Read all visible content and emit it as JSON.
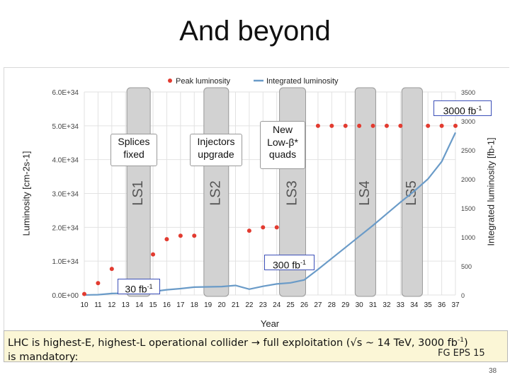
{
  "slide": {
    "title": "And beyond",
    "summary_line1": "LHC is highest-E, highest-L operational collider → full exploitation (√s ~ 14 TeV, 3000 fb",
    "summary_line1_sup": "-1",
    "summary_line1_end": ")",
    "summary_line2": "is mandatory:",
    "signature": "FG EPS 15",
    "page_number": "38"
  },
  "colors": {
    "peak": "#e23b30",
    "integrated": "#6a9bc8",
    "shutdown_fill": "#d2d2d2",
    "shutdown_stroke": "#999999",
    "grid": "#e2e2e2",
    "axis_text": "#444444",
    "callout_border": "#3b4fb8",
    "summary_bg": "#fbf6d6"
  },
  "chart_data": {
    "type": "line",
    "xlabel": "Year",
    "ylabel_left": "Luminosity [cm-2s-1]",
    "ylabel_right": "Integrated luminosity [fb-1]",
    "x_ticks": [
      "10",
      "11",
      "12",
      "13",
      "14",
      "15",
      "16",
      "17",
      "18",
      "19",
      "20",
      "21",
      "22",
      "23",
      "24",
      "25",
      "26",
      "27",
      "28",
      "29",
      "30",
      "31",
      "32",
      "33",
      "34",
      "35",
      "36",
      "37"
    ],
    "y_left_ticks": [
      "0.0E+00",
      "1.0E+34",
      "2.0E+34",
      "3.0E+34",
      "4.0E+34",
      "5.0E+34",
      "6.0E+34"
    ],
    "y_left_range": [
      0,
      6e+34
    ],
    "y_right_ticks": [
      "0",
      "500",
      "1000",
      "1500",
      "2000",
      "2500",
      "3000",
      "3500"
    ],
    "y_right_range": [
      0,
      3500
    ],
    "grid": true,
    "legend_position": "top",
    "series": [
      {
        "name": "Peak luminosity",
        "style": "scatter",
        "points": [
          [
            10,
            3e+32
          ],
          [
            11,
            3.5e+33
          ],
          [
            12,
            7.7e+33
          ],
          [
            15,
            1.2e+34
          ],
          [
            16,
            1.65e+34
          ],
          [
            17,
            1.75e+34
          ],
          [
            18,
            1.75e+34
          ],
          [
            22,
            1.9e+34
          ],
          [
            23,
            2e+34
          ],
          [
            24,
            2e+34
          ],
          [
            27,
            5e+34
          ],
          [
            28,
            5e+34
          ],
          [
            29,
            5e+34
          ],
          [
            30,
            5e+34
          ],
          [
            31,
            5e+34
          ],
          [
            32,
            5e+34
          ],
          [
            33,
            5e+34
          ],
          [
            35,
            5e+34
          ],
          [
            36,
            5e+34
          ],
          [
            37,
            5e+34
          ]
        ]
      },
      {
        "name": "Integrated luminosity",
        "style": "line",
        "points": [
          [
            10,
            0
          ],
          [
            11,
            5
          ],
          [
            12,
            25
          ],
          [
            13,
            30
          ],
          [
            15,
            60
          ],
          [
            16,
            90
          ],
          [
            17,
            110
          ],
          [
            18,
            135
          ],
          [
            19,
            140
          ],
          [
            20,
            145
          ],
          [
            21,
            165
          ],
          [
            22,
            100
          ],
          [
            23,
            150
          ],
          [
            24,
            190
          ],
          [
            25,
            210
          ],
          [
            26,
            260
          ],
          [
            27,
            440
          ],
          [
            28,
            630
          ],
          [
            29,
            820
          ],
          [
            30,
            1010
          ],
          [
            31,
            1200
          ],
          [
            32,
            1400
          ],
          [
            33,
            1600
          ],
          [
            34,
            1790
          ],
          [
            35,
            2000
          ],
          [
            36,
            2300
          ],
          [
            37,
            2800
          ]
        ]
      }
    ],
    "shutdowns": [
      {
        "label": "LS1",
        "x_start": 13.1,
        "x_end": 14.8
      },
      {
        "label": "LS2",
        "x_start": 18.7,
        "x_end": 20.5
      },
      {
        "label": "LS3",
        "x_start": 24.2,
        "x_end": 26.1
      },
      {
        "label": "LS4",
        "x_start": 29.7,
        "x_end": 31.2
      },
      {
        "label": "LS5",
        "x_start": 33.1,
        "x_end": 34.6
      }
    ]
  },
  "callouts": {
    "splices": {
      "line1": "Splices",
      "line2": "fixed"
    },
    "injectors": {
      "line1": "Injectors",
      "line2": "upgrade"
    },
    "newlow": {
      "line1": "New",
      "line2": "Low-β*",
      "line3": "quads"
    },
    "lumi3000": {
      "text": "3000 fb",
      "sup": "-1"
    },
    "lumi300": {
      "text": "300 fb",
      "sup": "-1"
    },
    "lumi30": {
      "text": "30 fb",
      "sup": "-1"
    }
  }
}
